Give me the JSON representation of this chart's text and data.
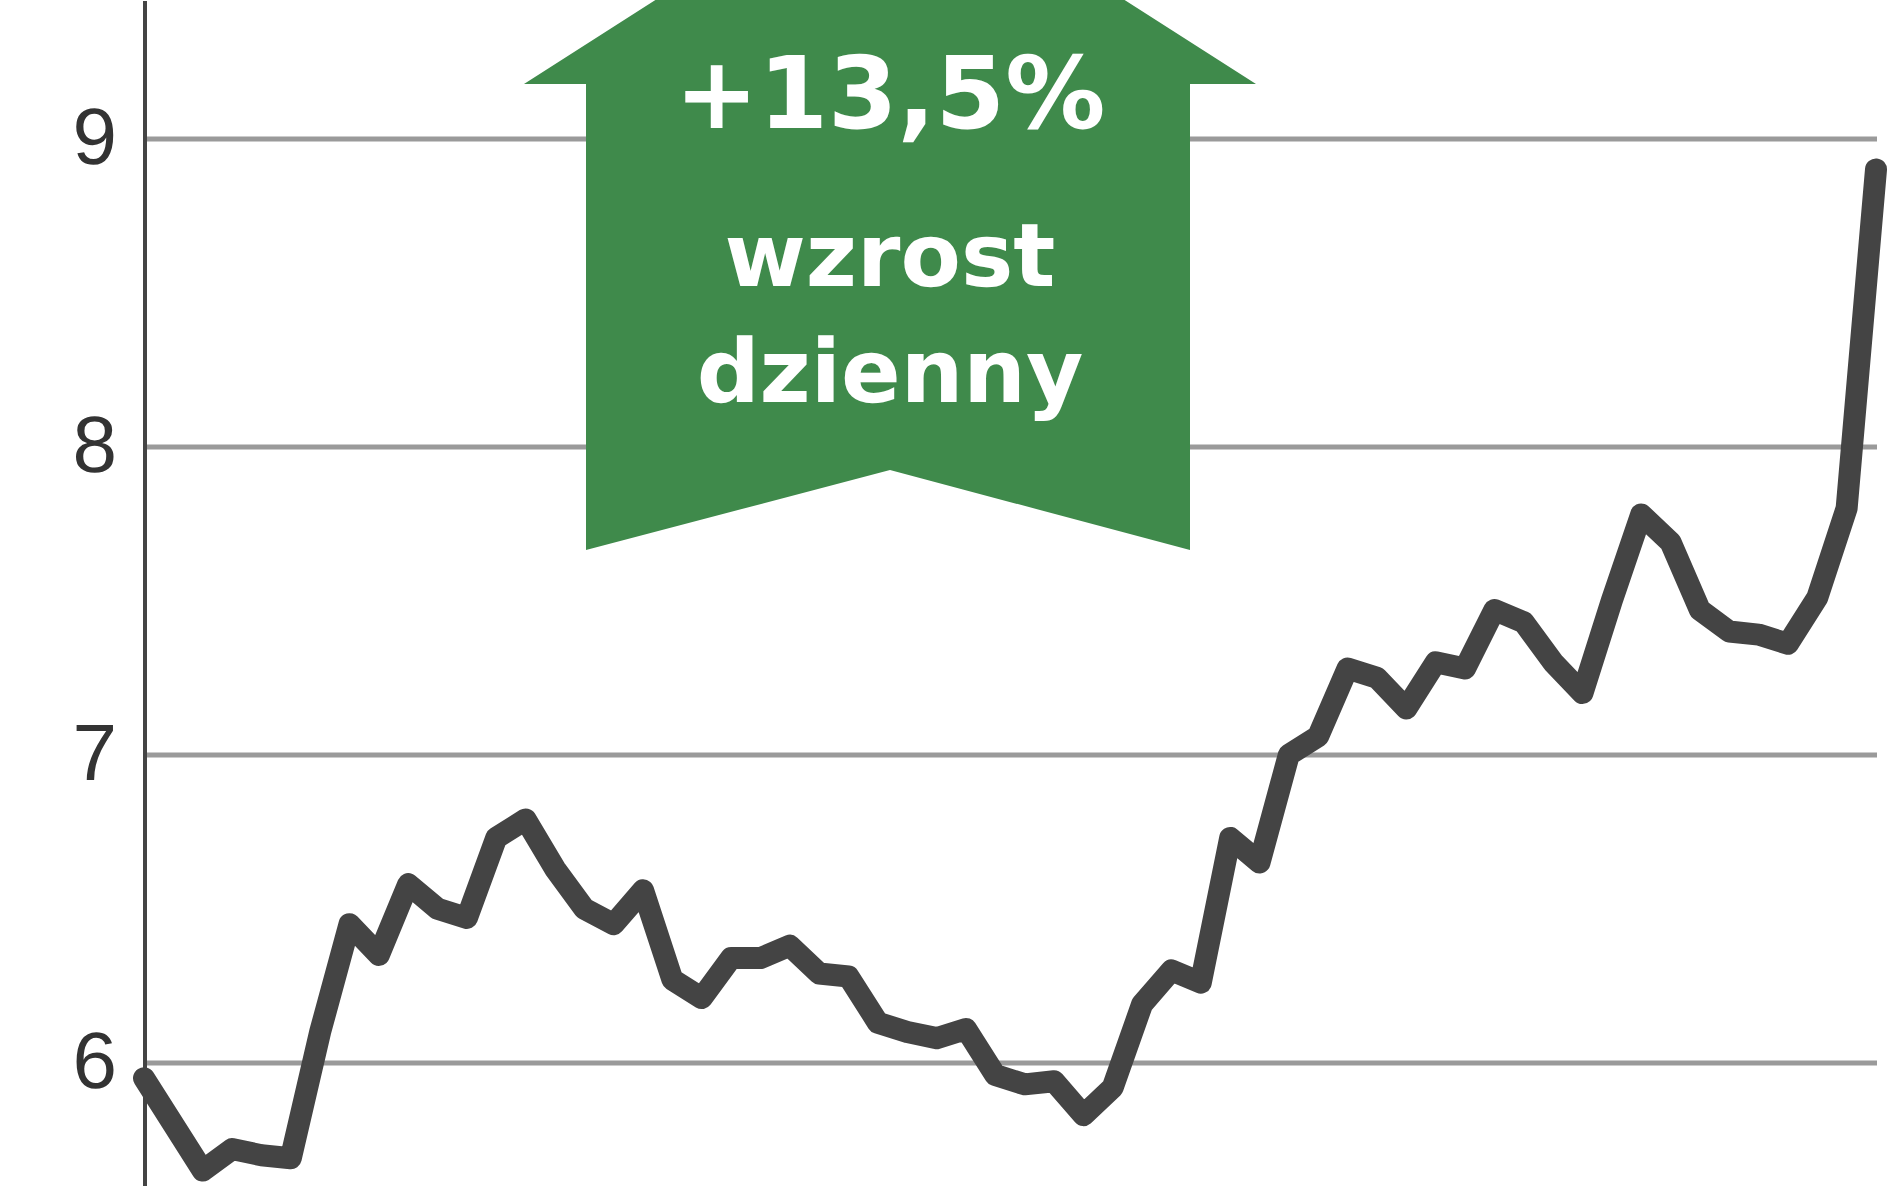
{
  "chart_data": {
    "type": "line",
    "categories": [
      null,
      null,
      null,
      null,
      null,
      null,
      null,
      null,
      null,
      null,
      null,
      null,
      null,
      null,
      null,
      null,
      null,
      null,
      null,
      null,
      null,
      null,
      null,
      null,
      null,
      null,
      null,
      null,
      null,
      null,
      null,
      null,
      null,
      null,
      null,
      null,
      null,
      null,
      null,
      null,
      null,
      null,
      null,
      null,
      null,
      null,
      null,
      null,
      null,
      null,
      null,
      null,
      null,
      null,
      null,
      null,
      null,
      null,
      null,
      null
    ],
    "series": [
      {
        "color": "#444444",
        "values": [
          5.95,
          5.8,
          5.65,
          5.72,
          5.7,
          5.69,
          6.1,
          6.45,
          6.35,
          6.58,
          6.5,
          6.47,
          6.73,
          6.79,
          6.63,
          6.5,
          6.45,
          6.56,
          6.27,
          6.21,
          6.34,
          6.34,
          6.38,
          6.29,
          6.28,
          6.13,
          6.1,
          6.08,
          6.11,
          5.96,
          5.93,
          5.94,
          5.83,
          5.92,
          6.19,
          6.3,
          6.26,
          6.73,
          6.65,
          7.0,
          7.06,
          7.28,
          7.25,
          7.15,
          7.3,
          7.28,
          7.47,
          7.43,
          7.3,
          7.2,
          7.5,
          7.78,
          7.69,
          7.47,
          7.4,
          7.39,
          7.36,
          7.51,
          7.8,
          8.9
        ]
      }
    ],
    "ylim": [
      5.6,
      9.45
    ],
    "yticks": [
      6,
      7,
      8,
      9
    ],
    "grid": "y",
    "tick_labels": "y",
    "line_style": "solid",
    "annotations": [
      "+13,5%",
      "wzrost dzienny"
    ]
  }
}
